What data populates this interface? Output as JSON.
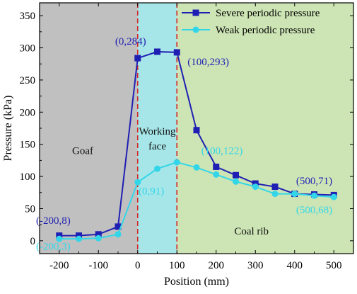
{
  "chart_data": {
    "type": "line",
    "xlabel": "Position (mm)",
    "ylabel": "Pressure (kPa)",
    "xlim": [
      -250,
      550
    ],
    "ylim": [
      -20,
      370
    ],
    "x_ticks": [
      -200,
      -100,
      0,
      100,
      200,
      300,
      400,
      500
    ],
    "y_ticks": [
      0,
      50,
      100,
      150,
      200,
      250,
      300,
      350
    ],
    "grid": false,
    "legend_position": "top-right",
    "regions": [
      {
        "label": "Goaf",
        "x_start": -250,
        "x_end": 0,
        "color": "#c0c0c0",
        "label_at": [
          -140,
          135
        ]
      },
      {
        "label_lines": [
          "Working",
          "face"
        ],
        "x_start": 0,
        "x_end": 100,
        "color": "#a6e6e8",
        "label_at": [
          50,
          165
        ]
      },
      {
        "label": "Coal rib",
        "x_start": 100,
        "x_end": 550,
        "color": "#cde5b5",
        "label_at": [
          290,
          10
        ]
      }
    ],
    "boundary_lines": [
      0,
      100
    ],
    "boundary_color": "#d62728",
    "series": [
      {
        "name": "Severe periodic pressure",
        "color": "#1f1fb4",
        "marker": "square",
        "x": [
          -200,
          -150,
          -100,
          -50,
          0,
          50,
          100,
          150,
          200,
          250,
          300,
          350,
          400,
          450,
          500
        ],
        "y": [
          8,
          8,
          10,
          22,
          284,
          294,
          293,
          172,
          115,
          102,
          89,
          84,
          73,
          72,
          71
        ]
      },
      {
        "name": "Weak periodic pressure",
        "color": "#33d6e8",
        "marker": "circle",
        "x": [
          -200,
          -150,
          -100,
          -50,
          0,
          50,
          100,
          150,
          200,
          250,
          300,
          350,
          400,
          450,
          500
        ],
        "y": [
          3,
          3,
          4,
          10,
          91,
          112,
          122,
          114,
          103,
          92,
          84,
          73,
          73,
          70,
          68
        ]
      }
    ],
    "annotations": [
      {
        "text": "(-200,8)",
        "series": 0,
        "x": -215,
        "y": 26
      },
      {
        "text": "(-200,3)",
        "series": 1,
        "x": -215,
        "y": -14
      },
      {
        "text": "(0,284)",
        "series": 0,
        "x": -18,
        "y": 305
      },
      {
        "text": "(0,91)",
        "series": 1,
        "x": 35,
        "y": 72
      },
      {
        "text": "(100,293)",
        "series": 0,
        "x": 180,
        "y": 273
      },
      {
        "text": "(100,122)",
        "series": 1,
        "x": 215,
        "y": 135
      },
      {
        "text": "(500,71)",
        "series": 0,
        "x": 450,
        "y": 88
      },
      {
        "text": "(500,68)",
        "series": 1,
        "x": 450,
        "y": 43
      }
    ]
  }
}
